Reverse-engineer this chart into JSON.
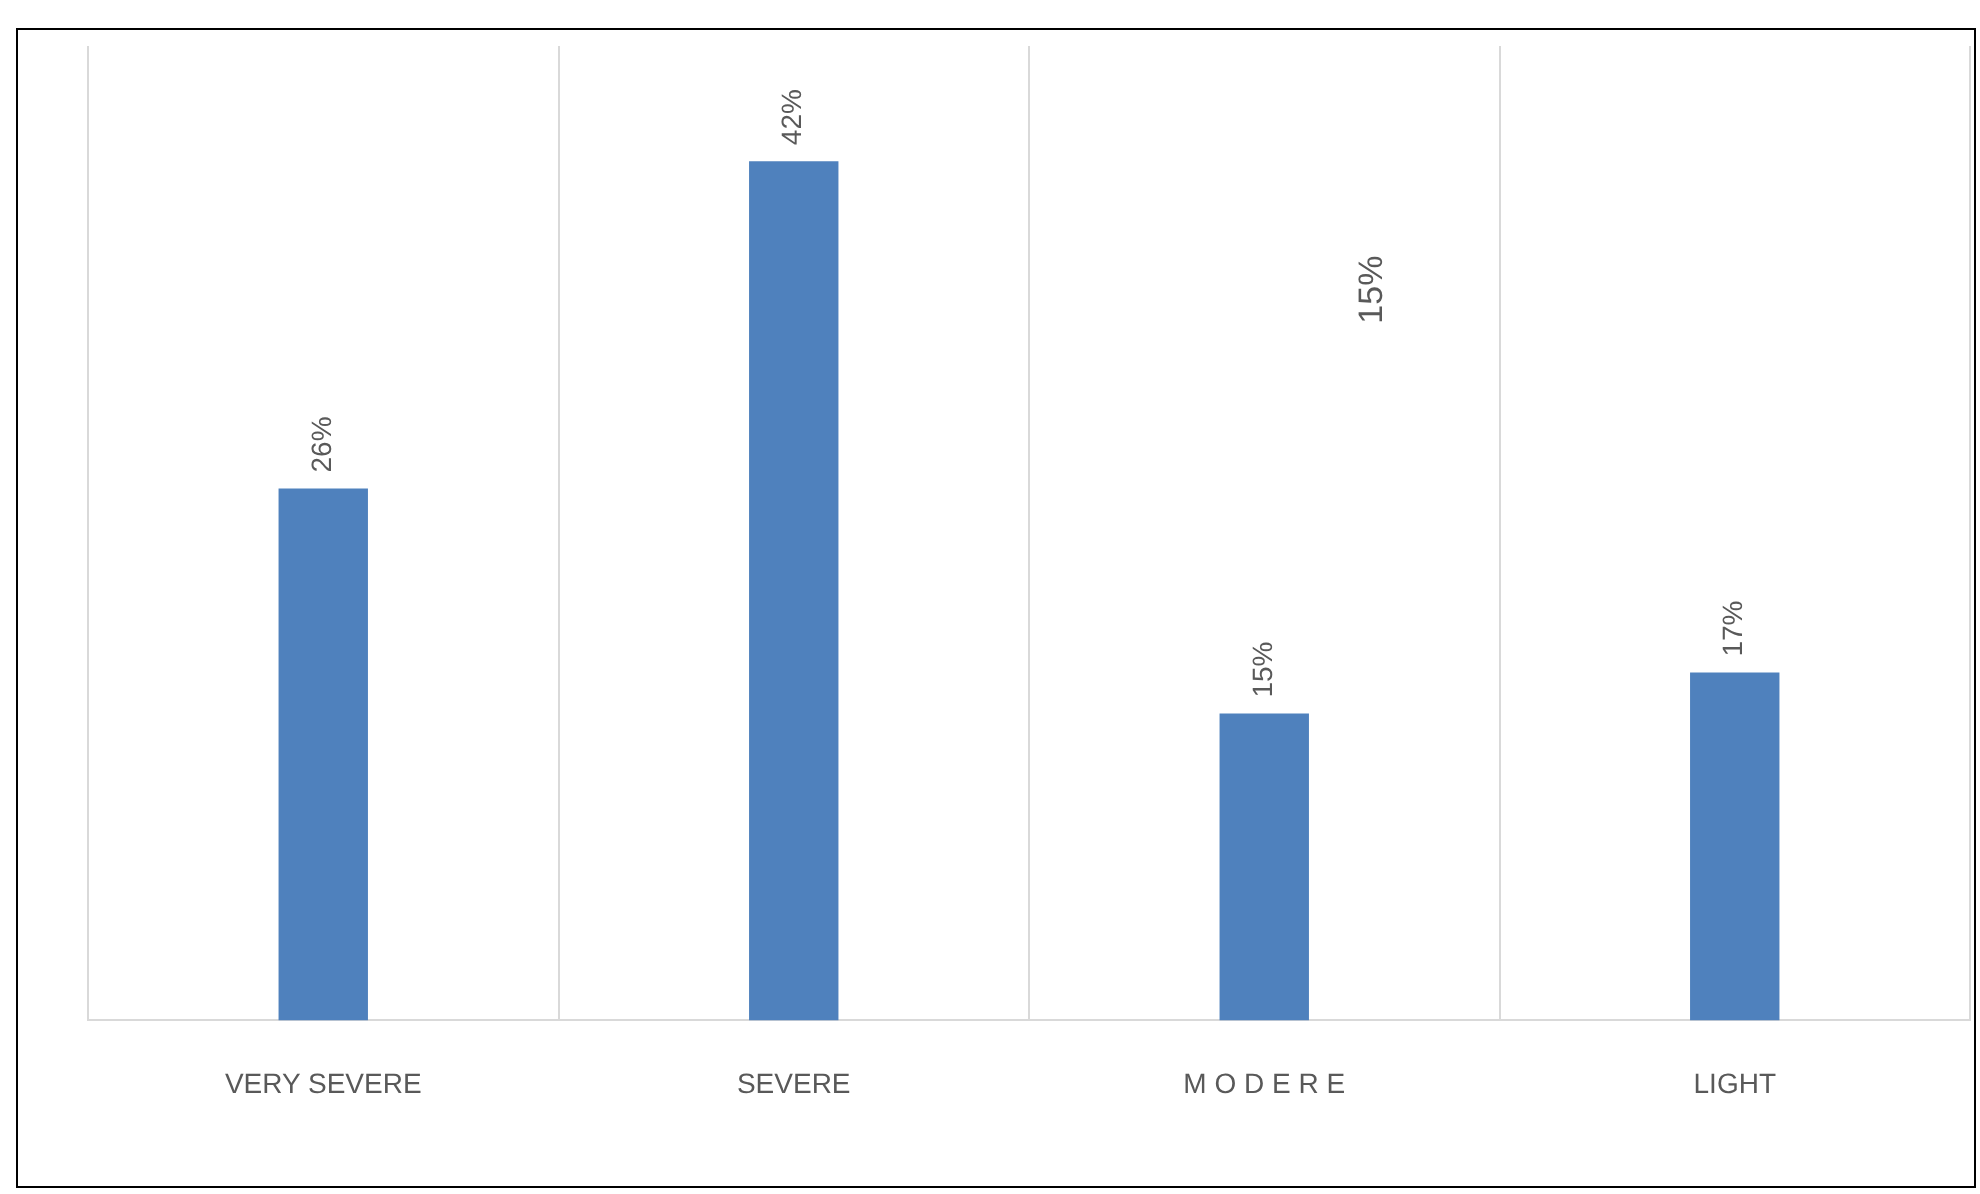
{
  "chart_data": {
    "type": "bar",
    "categories": [
      "VERY SEVERE",
      "SEVERE",
      "M O D E R E",
      "LIGHT"
    ],
    "values": [
      26,
      42,
      15,
      17
    ],
    "color": "#4f81bd",
    "value_labels": [
      "26%",
      "42%",
      "15%",
      "17%"
    ],
    "annotations": [
      "15%"
    ],
    "grid": "x",
    "legend": false
  }
}
